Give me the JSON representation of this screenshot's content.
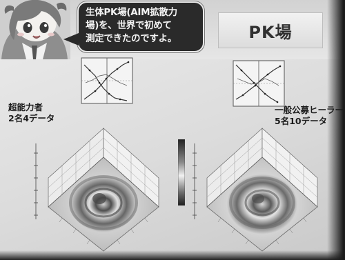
{
  "speech_bubble": {
    "text": "生体PK場(AIM拡散力\n場)を、世界で初めて\n測定できたのですよ。"
  },
  "slide_title": "PK場",
  "groups": {
    "left": {
      "label": "超能力者\n2名4データ"
    },
    "right": {
      "label": "一般公募ヒーラー\n5名10データ"
    }
  },
  "colors": {
    "slide": "#e3e3e3",
    "bubble": "#2a2a2a",
    "text": "#1c1c1c",
    "surface_light": "#d7d7d7",
    "surface_dark": "#5a5a5a"
  }
}
